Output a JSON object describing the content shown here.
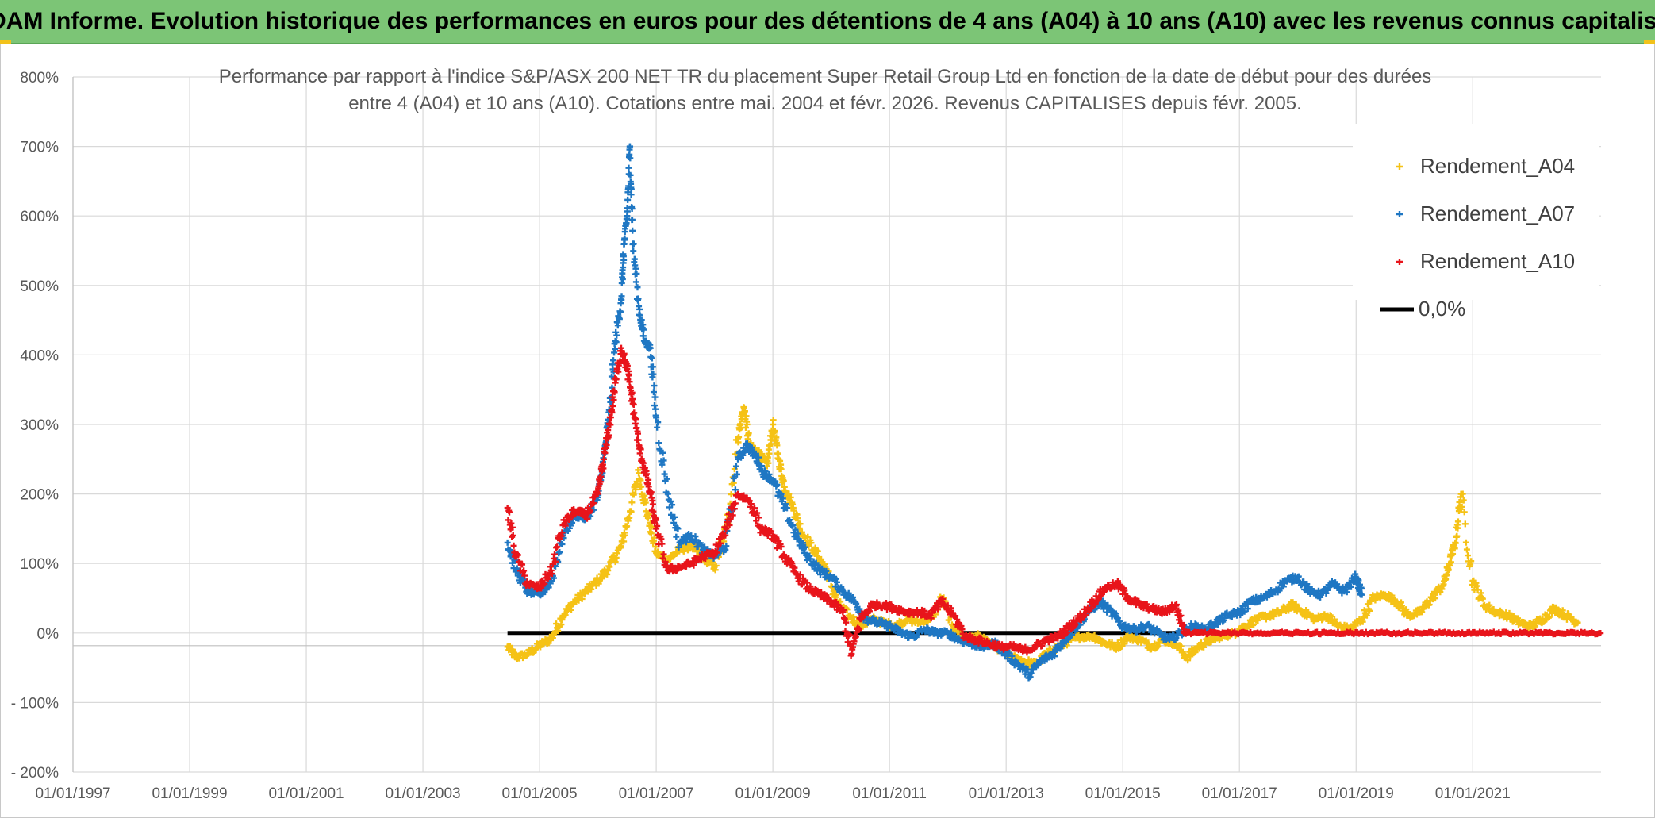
{
  "banner": {
    "title": "ADAM Informe. Evolution historique des performances en euros pour des détentions de 4 ans (A04) à 10 ans (A10) avec les revenus connus capitalisés"
  },
  "colors": {
    "banner_bg": "#7cc576",
    "A04": "#f5c216",
    "A07": "#1f77c3",
    "A10": "#e8141b",
    "zero": "#000000",
    "grid": "#d9d9d9"
  },
  "chart_data": {
    "type": "scatter",
    "title_line1": "Performance  par rapport à l'indice S&P/ASX 200 NET TR  du placement Super Retail Group Ltd en fonction de la date de début pour des durées",
    "title_line2": "entre 4 (A04) et 10 ans (A10). Cotations entre mai. 2004 et févr. 2026. Revenus CAPITALISES depuis févr. 2005.",
    "xlabel": "",
    "ylabel": "",
    "x_tick_labels": [
      "01/01/1997",
      "01/01/1999",
      "01/01/2001",
      "01/01/2003",
      "01/01/2005",
      "01/01/2007",
      "01/01/2009",
      "01/01/2011",
      "01/01/2013",
      "01/01/2015",
      "01/01/2017",
      "01/01/2019",
      "01/01/2021"
    ],
    "x_tick_years": [
      1997,
      1999,
      2001,
      2003,
      2005,
      2007,
      2009,
      2011,
      2013,
      2015,
      2017,
      2019,
      2021
    ],
    "xlim": [
      1997,
      2023.2
    ],
    "y_tick_labels": [
      "800%",
      "700%",
      "600%",
      "500%",
      "400%",
      "300%",
      "200%",
      "100%",
      "0%",
      "- 100%",
      "- 200%"
    ],
    "y_tick_values": [
      800,
      700,
      600,
      500,
      400,
      300,
      200,
      100,
      0,
      -100,
      -200
    ],
    "ylim": [
      -200,
      800
    ],
    "grid": true,
    "legend_position": "top-right",
    "legend": [
      "Rendement_A04",
      "Rendement_A07",
      "Rendement_A10",
      "0,0%"
    ],
    "series": [
      {
        "name": "Rendement_A04",
        "x": [
          2004.45,
          2004.6,
          2004.8,
          2005.0,
          2005.2,
          2005.4,
          2005.6,
          2005.8,
          2006.0,
          2006.2,
          2006.4,
          2006.55,
          2006.7,
          2006.85,
          2007.0,
          2007.2,
          2007.4,
          2007.6,
          2007.8,
          2008.0,
          2008.2,
          2008.4,
          2008.5,
          2008.6,
          2008.75,
          2008.9,
          2009.0,
          2009.1,
          2009.2,
          2009.35,
          2009.5,
          2009.7,
          2009.9,
          2010.1,
          2010.3,
          2010.5,
          2010.7,
          2010.9,
          2011.1,
          2011.3,
          2011.5,
          2011.7,
          2011.9,
          2012.1,
          2012.3,
          2012.5,
          2012.7,
          2012.9,
          2013.1,
          2013.3,
          2013.5,
          2013.7,
          2013.9,
          2014.1,
          2014.3,
          2014.5,
          2014.7,
          2014.9,
          2015.1,
          2015.3,
          2015.5,
          2015.7,
          2015.9,
          2016.1,
          2016.3,
          2016.5,
          2016.7,
          2016.9,
          2017.1,
          2017.3,
          2017.5,
          2017.7,
          2017.9,
          2018.1,
          2018.3,
          2018.5,
          2018.7,
          2018.9,
          2019.1,
          2019.3,
          2019.5,
          2019.7,
          2019.9,
          2020.1,
          2020.3,
          2020.5,
          2020.6,
          2020.7,
          2020.8,
          2021.0,
          2021.2,
          2021.4,
          2021.6,
          2021.8,
          2022.0,
          2022.2,
          2022.4,
          2022.6,
          2022.8
        ],
        "y": [
          -20,
          -35,
          -30,
          -18,
          -8,
          25,
          45,
          60,
          75,
          95,
          125,
          175,
          230,
          170,
          115,
          105,
          120,
          125,
          110,
          95,
          150,
          280,
          325,
          270,
          260,
          240,
          300,
          250,
          210,
          180,
          145,
          120,
          95,
          45,
          25,
          10,
          20,
          15,
          10,
          20,
          15,
          20,
          50,
          10,
          -10,
          -5,
          -15,
          -25,
          -35,
          -40,
          -45,
          -30,
          -20,
          -10,
          -5,
          -5,
          -15,
          -20,
          -5,
          -10,
          -20,
          -10,
          -15,
          -35,
          -20,
          -10,
          -5,
          0,
          10,
          20,
          25,
          30,
          40,
          30,
          20,
          25,
          10,
          5,
          20,
          50,
          55,
          45,
          25,
          30,
          50,
          70,
          100,
          130,
          200,
          75,
          40,
          30,
          25,
          15,
          10,
          20,
          35,
          25,
          15
        ]
      },
      {
        "name": "Rendement_A07",
        "x": [
          2004.45,
          2004.6,
          2004.8,
          2005.0,
          2005.2,
          2005.4,
          2005.6,
          2005.8,
          2006.0,
          2006.1,
          2006.2,
          2006.3,
          2006.4,
          2006.45,
          2006.5,
          2006.55,
          2006.6,
          2006.7,
          2006.8,
          2006.9,
          2007.0,
          2007.2,
          2007.4,
          2007.6,
          2007.8,
          2008.0,
          2008.2,
          2008.4,
          2008.55,
          2008.7,
          2008.85,
          2009.0,
          2009.2,
          2009.4,
          2009.6,
          2009.8,
          2010.0,
          2010.2,
          2010.4,
          2010.6,
          2010.8,
          2011.0,
          2011.2,
          2011.4,
          2011.6,
          2011.8,
          2012.0,
          2012.2,
          2012.4,
          2012.6,
          2012.8,
          2013.0,
          2013.2,
          2013.4,
          2013.6,
          2013.8,
          2014.0,
          2014.2,
          2014.4,
          2014.6,
          2014.8,
          2015.0,
          2015.2,
          2015.4,
          2015.6,
          2015.8,
          2016.0,
          2016.2,
          2016.4,
          2016.6,
          2016.8,
          2017.0,
          2017.2,
          2017.4,
          2017.6,
          2017.8,
          2018.0,
          2018.2,
          2018.4,
          2018.6,
          2018.8,
          2019.0,
          2019.1
        ],
        "y": [
          130,
          90,
          60,
          55,
          75,
          140,
          170,
          165,
          195,
          250,
          320,
          420,
          480,
          560,
          600,
          700,
          560,
          470,
          420,
          410,
          310,
          200,
          130,
          140,
          120,
          110,
          125,
          250,
          270,
          255,
          230,
          220,
          180,
          140,
          110,
          90,
          80,
          60,
          45,
          20,
          15,
          10,
          0,
          -5,
          5,
          0,
          0,
          -10,
          -15,
          -20,
          -15,
          -30,
          -45,
          -60,
          -40,
          -30,
          -10,
          10,
          30,
          45,
          30,
          10,
          5,
          10,
          0,
          -10,
          0,
          10,
          5,
          15,
          25,
          30,
          45,
          50,
          60,
          75,
          80,
          60,
          55,
          70,
          60,
          80,
          55
        ]
      },
      {
        "name": "Rendement_A10",
        "x": [
          2004.45,
          2004.6,
          2004.8,
          2005.0,
          2005.2,
          2005.4,
          2005.6,
          2005.8,
          2006.0,
          2006.1,
          2006.2,
          2006.3,
          2006.4,
          2006.5,
          2006.6,
          2006.7,
          2006.8,
          2006.9,
          2007.0,
          2007.2,
          2007.4,
          2007.6,
          2007.8,
          2008.0,
          2008.2,
          2008.4,
          2008.6,
          2008.8,
          2009.0,
          2009.2,
          2009.4,
          2009.6,
          2009.8,
          2010.0,
          2010.2,
          2010.35,
          2010.5,
          2010.7,
          2010.9,
          2011.1,
          2011.3,
          2011.5,
          2011.7,
          2011.9,
          2012.1,
          2012.3,
          2012.5,
          2012.7,
          2012.9,
          2013.1,
          2013.3,
          2013.5,
          2013.7,
          2013.9,
          2014.1,
          2014.3,
          2014.5,
          2014.7,
          2014.9,
          2015.1,
          2015.3,
          2015.5,
          2015.7,
          2015.9,
          2016.05
        ],
        "y": [
          180,
          110,
          70,
          65,
          90,
          155,
          175,
          170,
          200,
          250,
          300,
          360,
          410,
          380,
          330,
          270,
          235,
          200,
          150,
          90,
          95,
          100,
          110,
          115,
          150,
          200,
          190,
          150,
          140,
          110,
          85,
          65,
          55,
          45,
          30,
          -30,
          20,
          40,
          40,
          35,
          30,
          30,
          25,
          45,
          25,
          -5,
          -10,
          -15,
          -20,
          -20,
          -25,
          -20,
          -10,
          -5,
          10,
          25,
          45,
          65,
          70,
          50,
          40,
          35,
          30,
          40,
          5
        ]
      }
    ],
    "series_A10_flat_tail": {
      "x_start": 2016.05,
      "x_end": 2023.2,
      "y": 0
    },
    "reference_line": {
      "name": "0,0%",
      "y": 0,
      "x_start": 2004.45,
      "x_end": 2023.2
    }
  }
}
